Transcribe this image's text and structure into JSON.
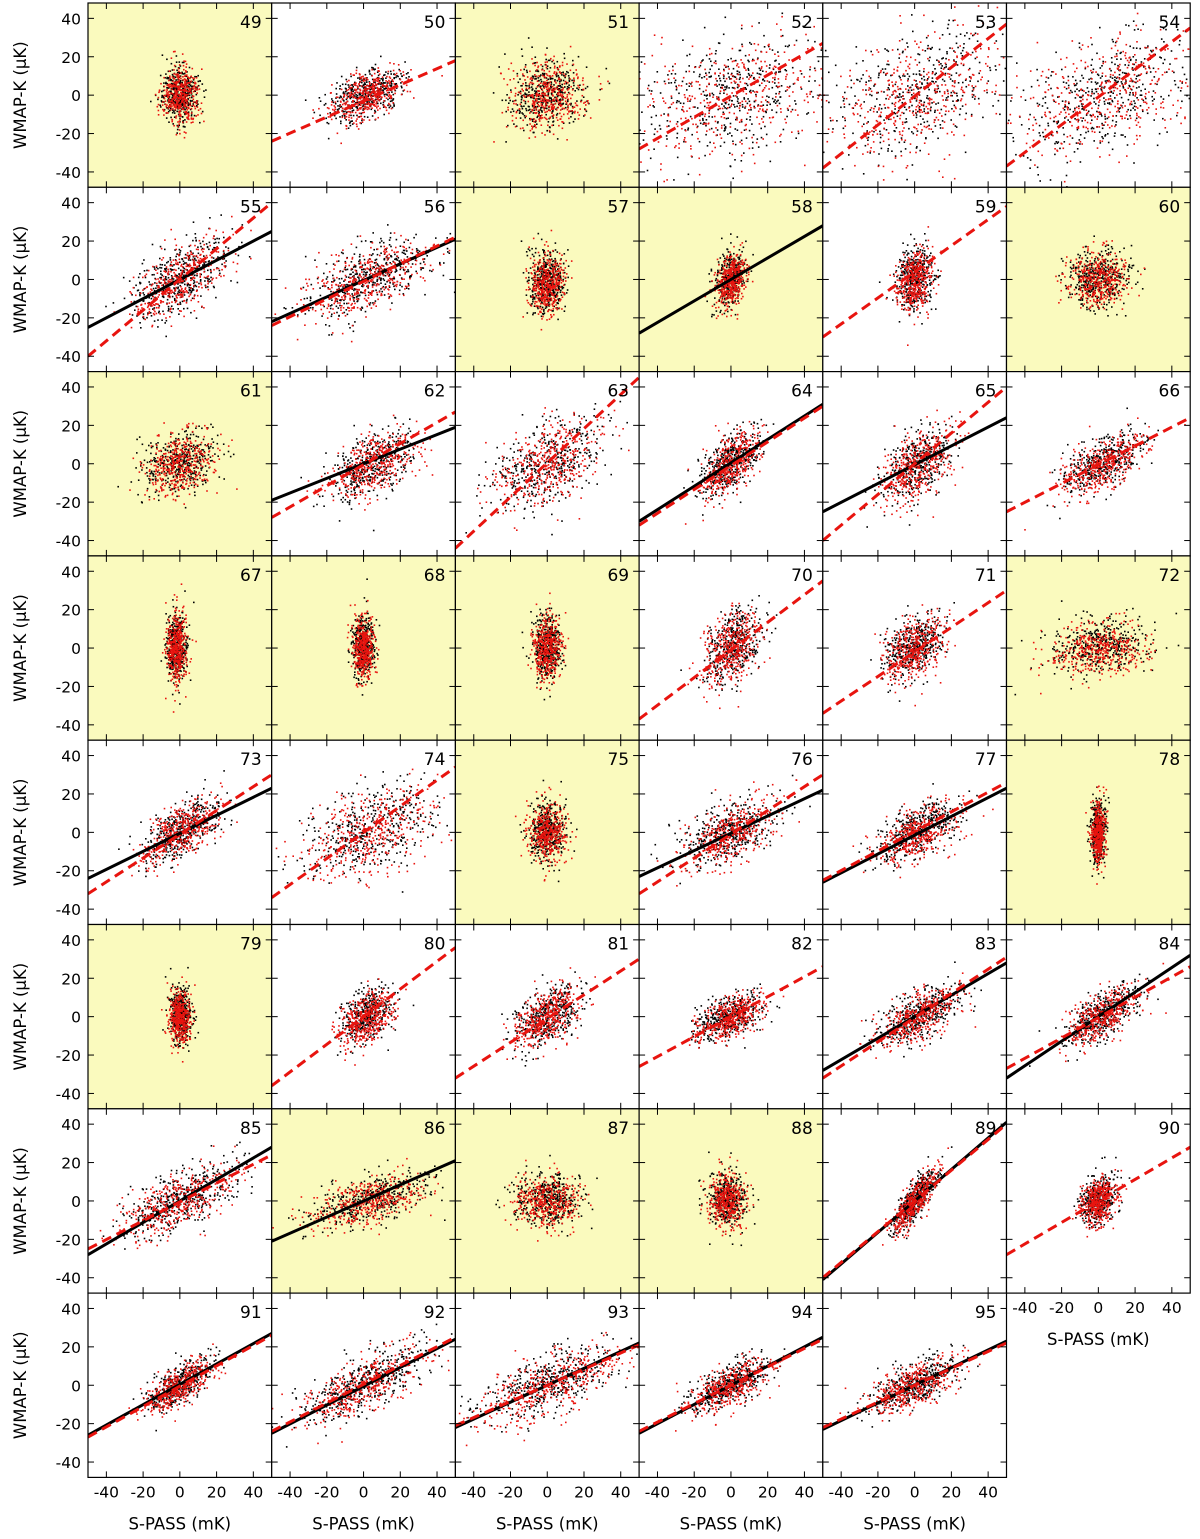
{
  "figure": {
    "xlabel": "S-PASS (mK)",
    "ylabel": "WMAP-K (µK)",
    "xticks": [
      "-40",
      "-20",
      "0",
      "20",
      "40"
    ],
    "yticks": [
      "40",
      "20",
      "0",
      "-20",
      "-40"
    ],
    "xlim": [
      -50,
      50
    ],
    "ylim": [
      -48,
      48
    ],
    "colors": {
      "highlight_bg": "#fafabe",
      "points_a": "#000000",
      "points_b": "#e8140f",
      "fit_solid": "#000000",
      "fit_dashed": "#e8140f"
    }
  },
  "chart_data": {
    "type": "scatter",
    "description_of_encoding": "Grid of 47 scatter panels (regions 49-95). Black points and red points per region; solid black line = fit to black, dashed red line = fit to red. Highlighted (yellow) panels are flagged regions. Each scatter cloud summarized by center (cx, cy) in data units and spread (sx, sy) and correlation slope.",
    "x_axis": {
      "label": "S-PASS (mK)",
      "range": [
        -50,
        50
      ]
    },
    "y_axis": {
      "label": "WMAP-K (µK)",
      "range": [
        -48,
        48
      ]
    },
    "panels": [
      {
        "id": "49",
        "highlight": true,
        "cx": 0,
        "cy": 0,
        "sx": 5,
        "sy": 7,
        "corr": 0.0,
        "solid": null,
        "dashed": null
      },
      {
        "id": "50",
        "highlight": false,
        "cx": 2,
        "cy": 0,
        "sx": 10,
        "sy": 7,
        "corr": 0.45,
        "solid": null,
        "dashed": [
          [
            -50,
            -24
          ],
          [
            50,
            18
          ]
        ]
      },
      {
        "id": "51",
        "highlight": true,
        "cx": 0,
        "cy": 0,
        "sx": 10,
        "sy": 9,
        "corr": 0.1,
        "solid": null,
        "dashed": null
      },
      {
        "id": "52",
        "highlight": false,
        "cx": 0,
        "cy": 0,
        "sx": 27,
        "sy": 16,
        "corr": 0.3,
        "solid": null,
        "dashed": [
          [
            -50,
            -28
          ],
          [
            50,
            27
          ]
        ]
      },
      {
        "id": "53",
        "highlight": false,
        "cx": 0,
        "cy": 0,
        "sx": 25,
        "sy": 17,
        "corr": 0.45,
        "solid": null,
        "dashed": [
          [
            -50,
            -38
          ],
          [
            50,
            37
          ]
        ]
      },
      {
        "id": "54",
        "highlight": false,
        "cx": 5,
        "cy": 0,
        "sx": 25,
        "sy": 16,
        "corr": 0.45,
        "solid": null,
        "dashed": [
          [
            -50,
            -37
          ],
          [
            50,
            35
          ]
        ]
      },
      {
        "id": "55",
        "highlight": false,
        "cx": 0,
        "cy": 0,
        "sx": 13,
        "sy": 11,
        "corr": 0.6,
        "solid": [
          [
            -50,
            -25
          ],
          [
            50,
            25
          ]
        ],
        "dashed": [
          [
            -50,
            -40
          ],
          [
            50,
            40
          ]
        ]
      },
      {
        "id": "56",
        "highlight": false,
        "cx": 2,
        "cy": 0,
        "sx": 17,
        "sy": 10,
        "corr": 0.55,
        "solid": [
          [
            -50,
            -22
          ],
          [
            50,
            21
          ]
        ],
        "dashed": [
          [
            -50,
            -24
          ],
          [
            50,
            22
          ]
        ]
      },
      {
        "id": "57",
        "highlight": true,
        "cx": 0,
        "cy": -2,
        "sx": 5,
        "sy": 8,
        "corr": 0.0,
        "solid": null,
        "dashed": null
      },
      {
        "id": "58",
        "highlight": true,
        "cx": 0,
        "cy": 0,
        "sx": 4,
        "sy": 7,
        "corr": 0.3,
        "solid": [
          [
            -50,
            -28
          ],
          [
            50,
            28
          ]
        ],
        "dashed": null
      },
      {
        "id": "59",
        "highlight": false,
        "cx": 0,
        "cy": 0,
        "sx": 5,
        "sy": 8,
        "corr": 0.1,
        "solid": null,
        "dashed": [
          [
            -50,
            -30
          ],
          [
            50,
            38
          ]
        ]
      },
      {
        "id": "60",
        "highlight": true,
        "cx": 0,
        "cy": 0,
        "sx": 8,
        "sy": 7,
        "corr": 0.0,
        "solid": null,
        "dashed": null
      },
      {
        "id": "61",
        "highlight": true,
        "cx": 0,
        "cy": 0,
        "sx": 10,
        "sy": 8,
        "corr": 0.2,
        "solid": null,
        "dashed": null
      },
      {
        "id": "62",
        "highlight": false,
        "cx": 5,
        "cy": 0,
        "sx": 12,
        "sy": 9,
        "corr": 0.5,
        "solid": [
          [
            -50,
            -19
          ],
          [
            50,
            19
          ]
        ],
        "dashed": [
          [
            -50,
            -28
          ],
          [
            50,
            27
          ]
        ]
      },
      {
        "id": "63",
        "highlight": false,
        "cx": 0,
        "cy": 0,
        "sx": 15,
        "sy": 12,
        "corr": 0.5,
        "solid": null,
        "dashed": [
          [
            -50,
            -44
          ],
          [
            50,
            45
          ]
        ]
      },
      {
        "id": "64",
        "highlight": false,
        "cx": 0,
        "cy": 0,
        "sx": 8,
        "sy": 9,
        "corr": 0.6,
        "solid": [
          [
            -50,
            -30
          ],
          [
            50,
            31
          ]
        ],
        "dashed": [
          [
            -50,
            -32
          ],
          [
            50,
            30
          ]
        ]
      },
      {
        "id": "65",
        "highlight": false,
        "cx": 2,
        "cy": 0,
        "sx": 10,
        "sy": 10,
        "corr": 0.5,
        "solid": [
          [
            -50,
            -25
          ],
          [
            50,
            24
          ]
        ],
        "dashed": [
          [
            -50,
            -40
          ],
          [
            50,
            40
          ]
        ]
      },
      {
        "id": "66",
        "highlight": false,
        "cx": 3,
        "cy": 0,
        "sx": 11,
        "sy": 8,
        "corr": 0.6,
        "solid": null,
        "dashed": [
          [
            -50,
            -25
          ],
          [
            50,
            24
          ]
        ]
      },
      {
        "id": "67",
        "highlight": true,
        "cx": -2,
        "cy": 0,
        "sx": 3,
        "sy": 9,
        "corr": 0.0,
        "solid": null,
        "dashed": null
      },
      {
        "id": "68",
        "highlight": true,
        "cx": 0,
        "cy": 0,
        "sx": 3,
        "sy": 8,
        "corr": 0.0,
        "solid": null,
        "dashed": null
      },
      {
        "id": "69",
        "highlight": true,
        "cx": 0,
        "cy": 0,
        "sx": 4,
        "sy": 8,
        "corr": 0.0,
        "solid": null,
        "dashed": null
      },
      {
        "id": "70",
        "highlight": false,
        "cx": 0,
        "cy": 0,
        "sx": 8,
        "sy": 10,
        "corr": 0.4,
        "solid": null,
        "dashed": [
          [
            -50,
            -37
          ],
          [
            50,
            35
          ]
        ]
      },
      {
        "id": "71",
        "highlight": false,
        "cx": 0,
        "cy": 0,
        "sx": 8,
        "sy": 8,
        "corr": 0.4,
        "solid": null,
        "dashed": [
          [
            -50,
            -34
          ],
          [
            50,
            30
          ]
        ]
      },
      {
        "id": "72",
        "highlight": true,
        "cx": 0,
        "cy": 0,
        "sx": 13,
        "sy": 7,
        "corr": 0.2,
        "solid": null,
        "dashed": null
      },
      {
        "id": "73",
        "highlight": false,
        "cx": 0,
        "cy": 0,
        "sx": 10,
        "sy": 8,
        "corr": 0.6,
        "solid": [
          [
            -50,
            -24
          ],
          [
            50,
            23
          ]
        ],
        "dashed": [
          [
            -50,
            -32
          ],
          [
            50,
            30
          ]
        ]
      },
      {
        "id": "74",
        "highlight": false,
        "cx": 3,
        "cy": 0,
        "sx": 18,
        "sy": 12,
        "corr": 0.45,
        "solid": null,
        "dashed": [
          [
            -50,
            -34
          ],
          [
            50,
            34
          ]
        ]
      },
      {
        "id": "75",
        "highlight": true,
        "cx": 0,
        "cy": 0,
        "sx": 5,
        "sy": 8,
        "corr": 0.0,
        "solid": null,
        "dashed": null
      },
      {
        "id": "76",
        "highlight": false,
        "cx": 0,
        "cy": 0,
        "sx": 13,
        "sy": 9,
        "corr": 0.55,
        "solid": [
          [
            -50,
            -23
          ],
          [
            50,
            22
          ]
        ],
        "dashed": [
          [
            -50,
            -32
          ],
          [
            50,
            30
          ]
        ]
      },
      {
        "id": "77",
        "highlight": false,
        "cx": 2,
        "cy": 0,
        "sx": 12,
        "sy": 8,
        "corr": 0.6,
        "solid": [
          [
            -50,
            -26
          ],
          [
            50,
            23
          ]
        ],
        "dashed": [
          [
            -50,
            -25
          ],
          [
            50,
            26
          ]
        ]
      },
      {
        "id": "78",
        "highlight": true,
        "cx": 0,
        "cy": 0,
        "sx": 2,
        "sy": 8,
        "corr": 0.0,
        "solid": null,
        "dashed": null
      },
      {
        "id": "79",
        "highlight": true,
        "cx": 0,
        "cy": 0,
        "sx": 3,
        "sy": 7,
        "corr": 0.0,
        "solid": null,
        "dashed": null
      },
      {
        "id": "80",
        "highlight": false,
        "cx": 2,
        "cy": 0,
        "sx": 7,
        "sy": 7,
        "corr": 0.4,
        "solid": null,
        "dashed": [
          [
            -50,
            -36
          ],
          [
            50,
            36
          ]
        ]
      },
      {
        "id": "81",
        "highlight": false,
        "cx": 0,
        "cy": 0,
        "sx": 9,
        "sy": 8,
        "corr": 0.45,
        "solid": null,
        "dashed": [
          [
            -50,
            -32
          ],
          [
            50,
            30
          ]
        ]
      },
      {
        "id": "82",
        "highlight": false,
        "cx": 0,
        "cy": 0,
        "sx": 9,
        "sy": 6,
        "corr": 0.5,
        "solid": null,
        "dashed": [
          [
            -50,
            -26
          ],
          [
            50,
            26
          ]
        ]
      },
      {
        "id": "83",
        "highlight": false,
        "cx": 2,
        "cy": 0,
        "sx": 11,
        "sy": 8,
        "corr": 0.6,
        "solid": [
          [
            -50,
            -28
          ],
          [
            50,
            28
          ]
        ],
        "dashed": [
          [
            -50,
            -32
          ],
          [
            50,
            31
          ]
        ]
      },
      {
        "id": "84",
        "highlight": false,
        "cx": 2,
        "cy": 0,
        "sx": 10,
        "sy": 8,
        "corr": 0.65,
        "solid": [
          [
            -50,
            -32
          ],
          [
            50,
            32
          ]
        ],
        "dashed": [
          [
            -50,
            -27
          ],
          [
            50,
            26
          ]
        ]
      },
      {
        "id": "85",
        "highlight": false,
        "cx": 0,
        "cy": 0,
        "sx": 17,
        "sy": 10,
        "corr": 0.7,
        "solid": [
          [
            -50,
            -28
          ],
          [
            50,
            28
          ]
        ],
        "dashed": [
          [
            -50,
            -25
          ],
          [
            50,
            24
          ]
        ]
      },
      {
        "id": "86",
        "highlight": true,
        "cx": 3,
        "cy": 0,
        "sx": 16,
        "sy": 7,
        "corr": 0.55,
        "solid": [
          [
            -50,
            -21
          ],
          [
            50,
            21
          ]
        ],
        "dashed": null
      },
      {
        "id": "87",
        "highlight": true,
        "cx": 0,
        "cy": 0,
        "sx": 9,
        "sy": 7,
        "corr": 0.0,
        "solid": null,
        "dashed": null
      },
      {
        "id": "88",
        "highlight": true,
        "cx": -2,
        "cy": 0,
        "sx": 5,
        "sy": 7,
        "corr": 0.0,
        "solid": null,
        "dashed": null
      },
      {
        "id": "89",
        "highlight": false,
        "cx": 0,
        "cy": 0,
        "sx": 6,
        "sy": 8,
        "corr": 0.8,
        "solid": [
          [
            -50,
            -41
          ],
          [
            50,
            41
          ]
        ],
        "dashed": [
          [
            -50,
            -40
          ],
          [
            50,
            40
          ]
        ]
      },
      {
        "id": "90",
        "highlight": false,
        "cx": 0,
        "cy": 0,
        "sx": 5,
        "sy": 6,
        "corr": 0.2,
        "solid": null,
        "dashed": [
          [
            -50,
            -28
          ],
          [
            50,
            28
          ]
        ]
      },
      {
        "id": "91",
        "highlight": false,
        "cx": 0,
        "cy": 0,
        "sx": 9,
        "sy": 7,
        "corr": 0.7,
        "solid": [
          [
            -50,
            -26
          ],
          [
            50,
            27
          ]
        ],
        "dashed": [
          [
            -50,
            -27
          ],
          [
            50,
            26
          ]
        ]
      },
      {
        "id": "92",
        "highlight": false,
        "cx": 0,
        "cy": 0,
        "sx": 17,
        "sy": 10,
        "corr": 0.75,
        "solid": [
          [
            -50,
            -25
          ],
          [
            50,
            24
          ]
        ],
        "dashed": [
          [
            -50,
            -24
          ],
          [
            50,
            25
          ]
        ]
      },
      {
        "id": "93",
        "highlight": false,
        "cx": 0,
        "cy": 0,
        "sx": 20,
        "sy": 10,
        "corr": 0.65,
        "solid": [
          [
            -50,
            -22
          ],
          [
            50,
            22
          ]
        ],
        "dashed": [
          [
            -50,
            -21
          ],
          [
            50,
            21
          ]
        ]
      },
      {
        "id": "94",
        "highlight": false,
        "cx": 0,
        "cy": 0,
        "sx": 11,
        "sy": 7,
        "corr": 0.65,
        "solid": [
          [
            -50,
            -25
          ],
          [
            50,
            25
          ]
        ],
        "dashed": [
          [
            -50,
            -24
          ],
          [
            50,
            24
          ]
        ]
      },
      {
        "id": "95",
        "highlight": false,
        "cx": 0,
        "cy": 0,
        "sx": 12,
        "sy": 7,
        "corr": 0.65,
        "solid": [
          [
            -50,
            -23
          ],
          [
            50,
            23
          ]
        ],
        "dashed": [
          [
            -50,
            -22
          ],
          [
            50,
            22
          ]
        ]
      }
    ]
  }
}
